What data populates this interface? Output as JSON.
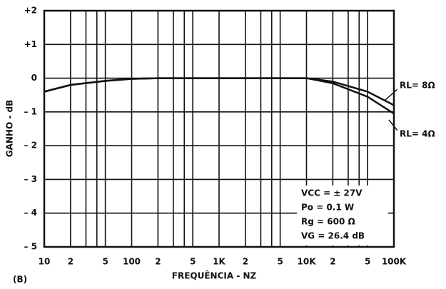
{
  "chart_data": {
    "type": "line",
    "x_label": "FREQUÊNCIA - NZ",
    "y_label": "GANHO - dB",
    "panel_label": "(B)",
    "log_x": true,
    "grid": true,
    "xlim": [
      10,
      100000
    ],
    "ylim": [
      -5,
      2
    ],
    "xticks": [
      10,
      {
        "value": 20,
        "label": "2"
      },
      {
        "value": 50,
        "label": "5"
      },
      100,
      {
        "value": 200,
        "label": "2"
      },
      {
        "value": 500,
        "label": "5"
      },
      {
        "value": 1000,
        "label": "1K"
      },
      {
        "value": 2000,
        "label": "2"
      },
      {
        "value": 5000,
        "label": "5"
      },
      {
        "value": 10000,
        "label": "10K"
      },
      {
        "value": 20000,
        "label": "2"
      },
      {
        "value": 50000,
        "label": "5"
      },
      {
        "value": 100000,
        "label": "100K"
      }
    ],
    "xminorticks": [
      30,
      40,
      300,
      400,
      3000,
      4000,
      30000,
      40000
    ],
    "yticks": [
      {
        "value": 2,
        "label": "+2"
      },
      {
        "value": 1,
        "label": "+1"
      },
      0,
      {
        "value": -1,
        "label": "– 1"
      },
      {
        "value": -2,
        "label": "– 2"
      },
      {
        "value": -3,
        "label": "– 3"
      },
      {
        "value": -4,
        "label": "– 4"
      },
      {
        "value": -5,
        "label": "– 5"
      }
    ],
    "x": [
      10,
      20,
      50,
      100,
      200,
      500,
      1000,
      2000,
      5000,
      10000,
      20000,
      50000,
      100000
    ],
    "series": [
      {
        "name": "RL= 8Ω",
        "color": "#111111",
        "values": [
          -0.4,
          -0.2,
          -0.08,
          -0.02,
          0,
          0,
          0,
          0,
          0,
          0,
          -0.1,
          -0.4,
          -0.8
        ]
      },
      {
        "name": "RL= 4Ω",
        "color": "#111111",
        "values": [
          -0.4,
          -0.2,
          -0.08,
          -0.02,
          0,
          0,
          0,
          0,
          0,
          0,
          -0.15,
          -0.55,
          -1.05
        ]
      }
    ],
    "notes": [
      "VCC = ± 27V",
      "Po = 0.1 W",
      "Rg = 600 Ω",
      "VG = 26.4 dB"
    ]
  }
}
